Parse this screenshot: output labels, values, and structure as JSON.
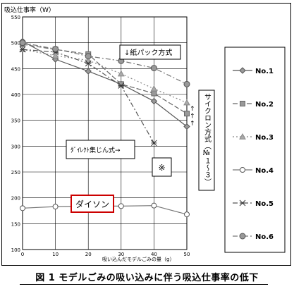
{
  "chart_data": {
    "type": "line",
    "ylabel": "吸込仕事率（W）",
    "xlabel": "吸い込んだモデルごみの量（g）",
    "xlim": [
      0,
      50
    ],
    "ylim": [
      100,
      550
    ],
    "x_ticks": [
      0,
      10,
      20,
      30,
      40,
      50
    ],
    "y_ticks": [
      100,
      150,
      200,
      250,
      300,
      350,
      400,
      450,
      500,
      550
    ],
    "grid": {
      "x": true,
      "y": true
    },
    "legend_position": "right",
    "series": [
      {
        "name": "No.1",
        "marker": "diamond",
        "dash": "solid",
        "color": "#555555",
        "x": [
          0,
          10,
          20,
          30,
          40,
          50
        ],
        "y": [
          503,
          468,
          445,
          420,
          387,
          338
        ]
      },
      {
        "name": "No.2",
        "marker": "square",
        "dash": "longdash",
        "color": "#666666",
        "x": [
          0,
          10,
          20,
          30,
          40,
          50
        ],
        "y": [
          497,
          487,
          478,
          420,
          402,
          363
        ]
      },
      {
        "name": "No.3",
        "marker": "triangle",
        "dash": "dot",
        "color": "#888888",
        "x": [
          0,
          10,
          20,
          30,
          40,
          50
        ],
        "y": [
          487,
          475,
          466,
          440,
          411,
          384
        ]
      },
      {
        "name": "No.4",
        "marker": "circle-open",
        "dash": "solid",
        "color": "#777777",
        "x": [
          0,
          10,
          20,
          30,
          40,
          50
        ],
        "y": [
          180,
          183,
          184,
          184,
          185,
          168
        ]
      },
      {
        "name": "No.5",
        "marker": "asterisk",
        "dash": "dashdot",
        "color": "#555555",
        "x": [
          0,
          10,
          20,
          30,
          40
        ],
        "y": [
          487,
          482,
          460,
          417,
          306
        ]
      },
      {
        "name": "No.6",
        "marker": "circle-filled",
        "dash": "dashdot",
        "color": "#777777",
        "x": [
          0,
          10,
          20,
          30,
          40,
          50
        ],
        "y": [
          500,
          488,
          474,
          465,
          451,
          420
        ]
      }
    ],
    "annotations": {
      "paper_pack": "↓紙パック方式",
      "cyclone": "サイクロン方式（№１～３）",
      "cyclone_arrows": "←  ←  ←",
      "direct": "ﾀﾞｲﾚｸﾄ集じん式→",
      "note_mark": "※",
      "dyson": "ダイソン"
    }
  },
  "caption": "図 1  モデルごみの吸い込みに伴う吸込仕事率の低下"
}
